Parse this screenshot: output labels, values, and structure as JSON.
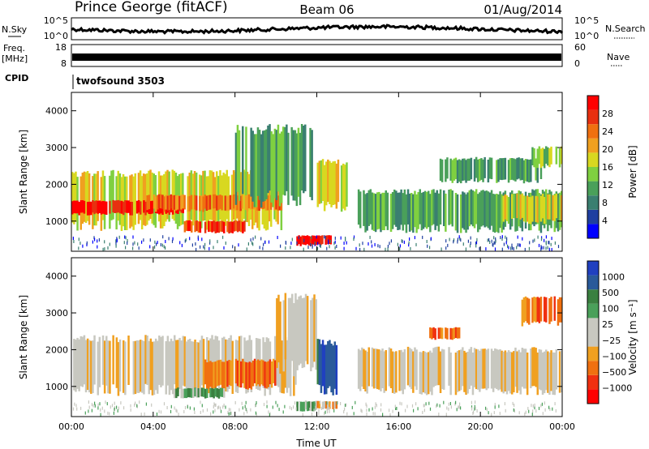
{
  "header": {
    "station": "Prince George (fitACF)",
    "beam": "Beam 06",
    "date": "01/Aug/2014"
  },
  "top_panels": {
    "nsky_label": "N.Sky",
    "nsearch_label": "N.Search",
    "nsky_ticks": [
      "10^5",
      "10^0"
    ],
    "nsearch_ticks": [
      "10^5",
      "10^0"
    ],
    "freq_label_1": "Freq.",
    "freq_label_2": "[MHz]",
    "freq_ticks": [
      "18",
      "8"
    ],
    "nave_label": "Nave",
    "nave_ticks": [
      "60",
      "0"
    ],
    "cpid_label": "CPID",
    "cpid_value": "twofsound 3503"
  },
  "colors": {
    "power": [
      "#0000ff",
      "#1f3fa0",
      "#3a7f70",
      "#4aa05a",
      "#7fd040",
      "#d8d820",
      "#f0a020",
      "#f07010",
      "#e83010",
      "#ff0000"
    ],
    "velocity": [
      "#ff0000",
      "#f03010",
      "#f07010",
      "#f0a020",
      "#c8c8c0",
      "#c8c8c0",
      "#4aa05a",
      "#3a8040",
      "#2a5a9a",
      "#2040c0"
    ]
  },
  "chart_data": [
    {
      "type": "heatmap",
      "name": "power",
      "ylabel": "Slant Range [km]",
      "ylim": [
        180,
        4500
      ],
      "yticks": [
        "1000",
        "2000",
        "3000",
        "4000"
      ],
      "xticks": [
        "00:00",
        "04:00",
        "08:00",
        "12:00",
        "16:00",
        "20:00",
        "00:00"
      ],
      "colorbar_label": "Power [dB]",
      "colorbar_ticks": [
        "4",
        "8",
        "12",
        "16",
        "20",
        "24",
        "28"
      ],
      "regions": [
        {
          "t0": 0.0,
          "t1": 10.3,
          "r0": 900,
          "r1": 2300,
          "level": 5
        },
        {
          "t0": 0.0,
          "t1": 5.5,
          "r0": 1200,
          "r1": 1550,
          "level": 9
        },
        {
          "t0": 3.5,
          "t1": 10.3,
          "r0": 1300,
          "r1": 1700,
          "level": 7
        },
        {
          "t0": 5.5,
          "t1": 8.5,
          "r0": 700,
          "r1": 1000,
          "level": 8
        },
        {
          "t0": 8.0,
          "t1": 11.8,
          "r0": 1600,
          "r1": 3500,
          "level": 3
        },
        {
          "t0": 11.0,
          "t1": 12.8,
          "r0": 350,
          "r1": 600,
          "level": 9
        },
        {
          "t0": 12.0,
          "t1": 13.5,
          "r0": 1400,
          "r1": 2600,
          "level": 5
        },
        {
          "t0": 14.0,
          "t1": 24.0,
          "r0": 800,
          "r1": 1800,
          "level": 3
        },
        {
          "t0": 18.0,
          "t1": 23.0,
          "r0": 2100,
          "r1": 2700,
          "level": 3
        },
        {
          "t0": 21.0,
          "t1": 24.0,
          "r0": 1000,
          "r1": 1700,
          "level": 5
        },
        {
          "t0": 22.5,
          "t1": 24.0,
          "r0": 2500,
          "r1": 3000,
          "level": 4
        }
      ]
    },
    {
      "type": "heatmap",
      "name": "velocity",
      "ylabel": "Slant Range [km]",
      "ylim": [
        180,
        4500
      ],
      "yticks": [
        "1000",
        "2000",
        "3000",
        "4000"
      ],
      "xticks": [
        "00:00",
        "04:00",
        "08:00",
        "12:00",
        "16:00",
        "20:00",
        "00:00"
      ],
      "xlabel": "Time UT",
      "colorbar_label": "Velocity [m s⁻¹]",
      "colorbar_ticks": [
        "1000",
        "500",
        "100",
        "25",
        "−25",
        "−100",
        "−500",
        "−1000"
      ],
      "regions": [
        {
          "t0": 0.0,
          "t1": 11.0,
          "r0": 900,
          "r1": 2300,
          "level": 4
        },
        {
          "t0": 6.5,
          "t1": 10.0,
          "r0": 1000,
          "r1": 1700,
          "level": 2
        },
        {
          "t0": 5.0,
          "t1": 7.5,
          "r0": 700,
          "r1": 950,
          "level": 6
        },
        {
          "t0": 10.0,
          "t1": 12.0,
          "r0": 1500,
          "r1": 3400,
          "level": 4
        },
        {
          "t0": 12.0,
          "t1": 13.0,
          "r0": 900,
          "r1": 2200,
          "level": 8
        },
        {
          "t0": 11.0,
          "t1": 12.0,
          "r0": 350,
          "r1": 600,
          "level": 6
        },
        {
          "t0": 12.0,
          "t1": 13.0,
          "r0": 400,
          "r1": 600,
          "level": 3
        },
        {
          "t0": 14.0,
          "t1": 24.0,
          "r0": 900,
          "r1": 2000,
          "level": 4
        },
        {
          "t0": 17.5,
          "t1": 19.0,
          "r0": 2300,
          "r1": 2600,
          "level": 2
        },
        {
          "t0": 22.0,
          "t1": 24.0,
          "r0": 2700,
          "r1": 3400,
          "level": 2
        }
      ]
    }
  ]
}
